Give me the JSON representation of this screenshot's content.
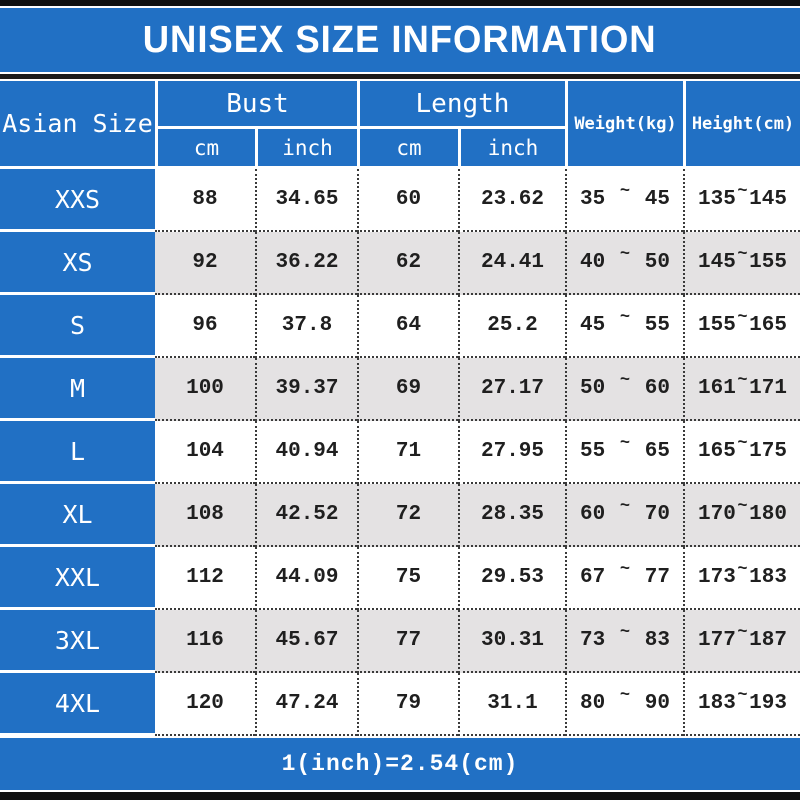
{
  "title": "UNISEX SIZE INFORMATION",
  "header": {
    "asian_size": "Asian Size",
    "bust": "Bust",
    "length": "Length",
    "weight": "Weight(kg)",
    "height": "Height(cm)",
    "bust_cm": "cm",
    "bust_inch": "inch",
    "length_cm": "cm",
    "length_inch": "inch"
  },
  "range_separator": "~",
  "rows": [
    {
      "size": "XXS",
      "bust_cm": "88",
      "bust_inch": "34.65",
      "length_cm": "60",
      "length_inch": "23.62",
      "weight_min": "35",
      "weight_max": "45",
      "height_min": "135",
      "height_max": "145"
    },
    {
      "size": "XS",
      "bust_cm": "92",
      "bust_inch": "36.22",
      "length_cm": "62",
      "length_inch": "24.41",
      "weight_min": "40",
      "weight_max": "50",
      "height_min": "145",
      "height_max": "155"
    },
    {
      "size": "S",
      "bust_cm": "96",
      "bust_inch": "37.8",
      "length_cm": "64",
      "length_inch": "25.2",
      "weight_min": "45",
      "weight_max": "55",
      "height_min": "155",
      "height_max": "165"
    },
    {
      "size": "M",
      "bust_cm": "100",
      "bust_inch": "39.37",
      "length_cm": "69",
      "length_inch": "27.17",
      "weight_min": "50",
      "weight_max": "60",
      "height_min": "161",
      "height_max": "171"
    },
    {
      "size": "L",
      "bust_cm": "104",
      "bust_inch": "40.94",
      "length_cm": "71",
      "length_inch": "27.95",
      "weight_min": "55",
      "weight_max": "65",
      "height_min": "165",
      "height_max": "175"
    },
    {
      "size": "XL",
      "bust_cm": "108",
      "bust_inch": "42.52",
      "length_cm": "72",
      "length_inch": "28.35",
      "weight_min": "60",
      "weight_max": "70",
      "height_min": "170",
      "height_max": "180"
    },
    {
      "size": "XXL",
      "bust_cm": "112",
      "bust_inch": "44.09",
      "length_cm": "75",
      "length_inch": "29.53",
      "weight_min": "67",
      "weight_max": "77",
      "height_min": "173",
      "height_max": "183"
    },
    {
      "size": "3XL",
      "bust_cm": "116",
      "bust_inch": "45.67",
      "length_cm": "77",
      "length_inch": "30.31",
      "weight_min": "73",
      "weight_max": "83",
      "height_min": "177",
      "height_max": "187"
    },
    {
      "size": "4XL",
      "bust_cm": "120",
      "bust_inch": "47.24",
      "length_cm": "79",
      "length_inch": "31.1",
      "weight_min": "80",
      "weight_max": "90",
      "height_min": "183",
      "height_max": "193"
    }
  ],
  "footer_note": "1(inch)=2.54(cm)",
  "colors": {
    "blue": "#2170c4",
    "row_alt_gray": "#e4e2e3",
    "border_bar_black": "#101010",
    "text_dark": "#1f1f1f",
    "text_on_blue": "#ffffff"
  }
}
